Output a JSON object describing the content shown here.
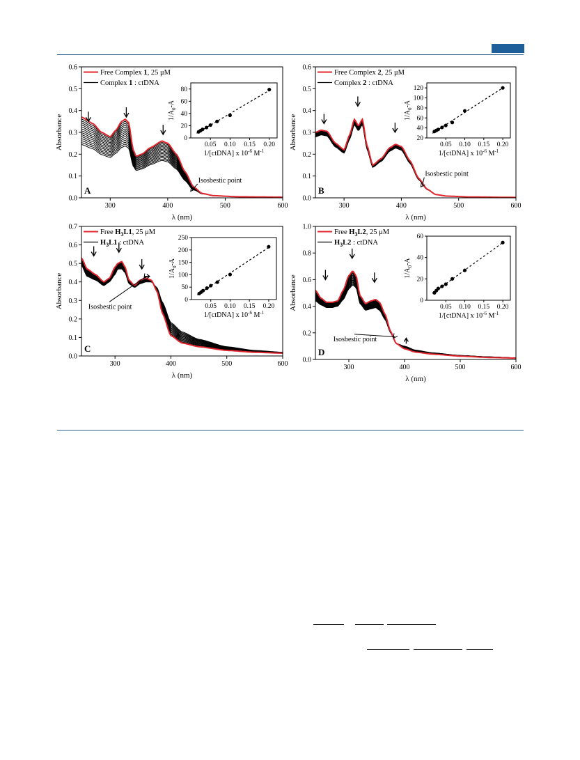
{
  "colors": {
    "accent": "#1f5f99",
    "free": "#e0262c",
    "complex": "#000000",
    "rule": "#2e5f8a"
  },
  "chart_data": [
    {
      "type": "line",
      "panel": "A",
      "xlabel": "λ (nm)",
      "ylabel": "Absorbance",
      "xlim": [
        250,
        600
      ],
      "ylim": [
        0.0,
        0.6
      ],
      "xticks": [
        300,
        400,
        500,
        600
      ],
      "yticks": [
        0.0,
        0.1,
        0.2,
        0.3,
        0.4,
        0.5,
        0.6
      ],
      "legend": [
        {
          "pre": "Free Complex ",
          "bold": "1",
          "post": ", 25 μM"
        },
        {
          "pre": "Complex ",
          "bold": "1",
          "post": " : ctDNA"
        }
      ],
      "free_spectrum": {
        "x": [
          250,
          270,
          285,
          300,
          310,
          320,
          326,
          332,
          340,
          345,
          355,
          370,
          390,
          400,
          415,
          430,
          445,
          460,
          480,
          520,
          600
        ],
        "y": [
          0.37,
          0.34,
          0.3,
          0.28,
          0.31,
          0.35,
          0.36,
          0.345,
          0.22,
          0.19,
          0.2,
          0.23,
          0.26,
          0.25,
          0.2,
          0.12,
          0.05,
          0.02,
          0.01,
          0.005,
          0.003
        ]
      },
      "last_spectrum_scale": 0.66,
      "n_titration_curves": 14,
      "arrows": [
        [
          262,
          0.35,
          "down"
        ],
        [
          328,
          0.37,
          "down"
        ],
        [
          392,
          0.29,
          "down"
        ]
      ],
      "annotation": {
        "text": "Isosbestic point",
        "at": [
          440,
          0.03
        ],
        "label_at": [
          452,
          0.07
        ]
      },
      "inset": {
        "xlabel": "1/[ctDNA] x 10",
        "xlabel_sup": "-6",
        "xlabel_unit": " M",
        "xlabel_unit_sup": "-1",
        "ylabel": "1/A0-A",
        "xlim": [
          0,
          0.22
        ],
        "ylim": [
          0,
          90
        ],
        "xticks": [
          0.05,
          0.1,
          0.15,
          0.2
        ],
        "yticks": [
          0,
          20,
          40,
          60,
          80
        ],
        "points": {
          "x": [
            0.02,
            0.025,
            0.03,
            0.04,
            0.05,
            0.067,
            0.1,
            0.2
          ],
          "y": [
            10,
            12,
            14,
            17,
            21,
            27,
            37,
            79
          ]
        }
      }
    },
    {
      "type": "line",
      "panel": "B",
      "xlabel": "λ (nm)",
      "ylabel": "Absorbance",
      "xlim": [
        250,
        600
      ],
      "ylim": [
        0.0,
        0.6
      ],
      "xticks": [
        300,
        400,
        500,
        600
      ],
      "yticks": [
        0.0,
        0.1,
        0.2,
        0.3,
        0.4,
        0.5,
        0.6
      ],
      "legend": [
        {
          "pre": "Free Complex ",
          "bold": "2",
          "post": ", 25 μM"
        },
        {
          "pre": "Complex ",
          "bold": "2",
          "post": " : ctDNA"
        }
      ],
      "free_spectrum": {
        "x": [
          250,
          260,
          270,
          285,
          300,
          310,
          318,
          325,
          332,
          340,
          350,
          365,
          380,
          390,
          400,
          415,
          430,
          445,
          460,
          480,
          520,
          600
        ],
        "y": [
          0.3,
          0.31,
          0.305,
          0.25,
          0.22,
          0.29,
          0.36,
          0.33,
          0.36,
          0.24,
          0.15,
          0.18,
          0.23,
          0.245,
          0.235,
          0.17,
          0.09,
          0.04,
          0.015,
          0.008,
          0.004,
          0.002
        ]
      },
      "last_spectrum_scale": 0.93,
      "n_titration_curves": 12,
      "arrows": [
        [
          265,
          0.34,
          "down"
        ],
        [
          324,
          0.42,
          "down"
        ],
        [
          389,
          0.3,
          "down"
        ]
      ],
      "annotation": {
        "text": "Isosbestic point",
        "at": [
          434,
          0.05
        ],
        "label_at": [
          440,
          0.1
        ]
      },
      "inset": {
        "xlabel": "1/[ctDNA] x 10",
        "xlabel_sup": "-6",
        "xlabel_unit": " M",
        "xlabel_unit_sup": "-1",
        "ylabel": "1/A0-A",
        "xlim": [
          0,
          0.22
        ],
        "ylim": [
          20,
          130
        ],
        "xticks": [
          0.05,
          0.1,
          0.15,
          0.2
        ],
        "yticks": [
          20,
          40,
          60,
          80,
          100,
          120
        ],
        "points": {
          "x": [
            0.02,
            0.025,
            0.03,
            0.04,
            0.05,
            0.067,
            0.1,
            0.2
          ],
          "y": [
            33,
            35,
            37,
            41,
            45,
            51,
            74,
            120
          ]
        }
      }
    },
    {
      "type": "line",
      "panel": "C",
      "xlabel": "λ (nm)",
      "ylabel": "Absorbance",
      "xlim": [
        240,
        600
      ],
      "ylim": [
        0.0,
        0.7
      ],
      "xticks": [
        300,
        400,
        500,
        600
      ],
      "yticks": [
        0.0,
        0.1,
        0.2,
        0.3,
        0.4,
        0.5,
        0.6,
        0.7
      ],
      "legend": [
        {
          "pre": "Free ",
          "bold": "H3L1",
          "post": ", 25 μM"
        },
        {
          "pre": "",
          "bold": "H3L1",
          "post": " : ctDNA"
        }
      ],
      "free_spectrum": {
        "x": [
          240,
          250,
          265,
          280,
          290,
          300,
          305,
          312,
          318,
          325,
          335,
          345,
          355,
          365,
          375,
          385,
          400,
          420,
          450,
          500,
          550,
          600
        ],
        "y": [
          0.53,
          0.47,
          0.44,
          0.4,
          0.42,
          0.48,
          0.5,
          0.51,
          0.48,
          0.41,
          0.38,
          0.41,
          0.42,
          0.41,
          0.35,
          0.23,
          0.11,
          0.07,
          0.05,
          0.03,
          0.02,
          0.015
        ]
      },
      "last_spectrum": {
        "x": [
          240,
          250,
          265,
          280,
          290,
          300,
          305,
          312,
          318,
          325,
          335,
          345,
          355,
          365,
          375,
          385,
          400,
          420,
          450,
          500,
          550,
          600
        ],
        "y": [
          0.49,
          0.43,
          0.41,
          0.38,
          0.4,
          0.44,
          0.47,
          0.47,
          0.45,
          0.39,
          0.37,
          0.39,
          0.4,
          0.4,
          0.37,
          0.29,
          0.18,
          0.13,
          0.09,
          0.05,
          0.03,
          0.02
        ]
      },
      "n_titration_curves": 12,
      "arrows": [
        [
          262,
          0.54,
          "down"
        ],
        [
          307,
          0.56,
          "down"
        ],
        [
          348,
          0.47,
          "down"
        ],
        [
          362,
          0.43,
          "right"
        ],
        [
          413,
          0.12,
          "up"
        ]
      ],
      "annotation": {
        "text": "Isosbestic point",
        "at": [
          352,
          0.42
        ],
        "label_at": [
          290,
          0.3
        ]
      },
      "inset": {
        "xlabel": "1/[ctDNA] x 10",
        "xlabel_sup": "-6",
        "xlabel_unit": " M",
        "xlabel_unit_sup": "-1",
        "ylabel": "1/A0-A",
        "xlim": [
          0,
          0.22
        ],
        "ylim": [
          0,
          250
        ],
        "xticks": [
          0.05,
          0.1,
          0.15,
          0.2
        ],
        "yticks": [
          0,
          50,
          100,
          150,
          200,
          250
        ],
        "points": {
          "x": [
            0.02,
            0.025,
            0.03,
            0.04,
            0.05,
            0.067,
            0.1,
            0.2
          ],
          "y": [
            24,
            30,
            36,
            46,
            56,
            70,
            101,
            213
          ]
        }
      }
    },
    {
      "type": "line",
      "panel": "D",
      "xlabel": "λ (nm)",
      "ylabel": "Absorbance",
      "xlim": [
        240,
        600
      ],
      "ylim": [
        0.0,
        1.0
      ],
      "xticks": [
        300,
        400,
        500,
        600
      ],
      "yticks": [
        0.0,
        0.2,
        0.4,
        0.6,
        0.8,
        1.0
      ],
      "legend": [
        {
          "pre": "Free ",
          "bold": "H3L2",
          "post": ", 25 μM"
        },
        {
          "pre": "",
          "bold": "H3L2",
          "post": " : ctDNA"
        }
      ],
      "free_spectrum": {
        "x": [
          240,
          250,
          260,
          270,
          280,
          290,
          300,
          307,
          313,
          320,
          330,
          340,
          348,
          355,
          365,
          375,
          385,
          400,
          420,
          450,
          500,
          550,
          600
        ],
        "y": [
          0.52,
          0.46,
          0.43,
          0.43,
          0.44,
          0.52,
          0.63,
          0.665,
          0.63,
          0.48,
          0.42,
          0.44,
          0.45,
          0.43,
          0.34,
          0.21,
          0.12,
          0.08,
          0.055,
          0.04,
          0.025,
          0.015,
          0.01
        ]
      },
      "last_spectrum": {
        "x": [
          240,
          250,
          260,
          270,
          280,
          290,
          300,
          307,
          313,
          320,
          330,
          340,
          348,
          355,
          365,
          375,
          385,
          400,
          420,
          450,
          500,
          550,
          600
        ],
        "y": [
          0.44,
          0.41,
          0.39,
          0.39,
          0.4,
          0.45,
          0.53,
          0.56,
          0.54,
          0.42,
          0.37,
          0.38,
          0.39,
          0.37,
          0.3,
          0.2,
          0.12,
          0.1,
          0.07,
          0.05,
          0.03,
          0.02,
          0.012
        ]
      },
      "n_titration_curves": 14,
      "arrows": [
        [
          258,
          0.6,
          "down"
        ],
        [
          306,
          0.76,
          "down"
        ],
        [
          346,
          0.58,
          "down"
        ],
        [
          403,
          0.16,
          "up"
        ]
      ],
      "annotation": {
        "text": "Isosbestic point",
        "at": [
          380,
          0.16
        ],
        "label_at": [
          310,
          0.2
        ]
      },
      "inset": {
        "xlabel": "1/[ctDNA] x 10",
        "xlabel_sup": "-6",
        "xlabel_unit": " M",
        "xlabel_unit_sup": "-1",
        "ylabel": "1/A0-A",
        "xlim": [
          0,
          0.22
        ],
        "ylim": [
          0,
          60
        ],
        "xticks": [
          0.05,
          0.1,
          0.15,
          0.2
        ],
        "yticks": [
          0,
          20,
          40,
          60
        ],
        "points": {
          "x": [
            0.02,
            0.025,
            0.03,
            0.04,
            0.05,
            0.067,
            0.1,
            0.2
          ],
          "y": [
            7,
            9,
            11,
            13,
            15,
            20,
            28,
            54
          ]
        }
      }
    }
  ]
}
